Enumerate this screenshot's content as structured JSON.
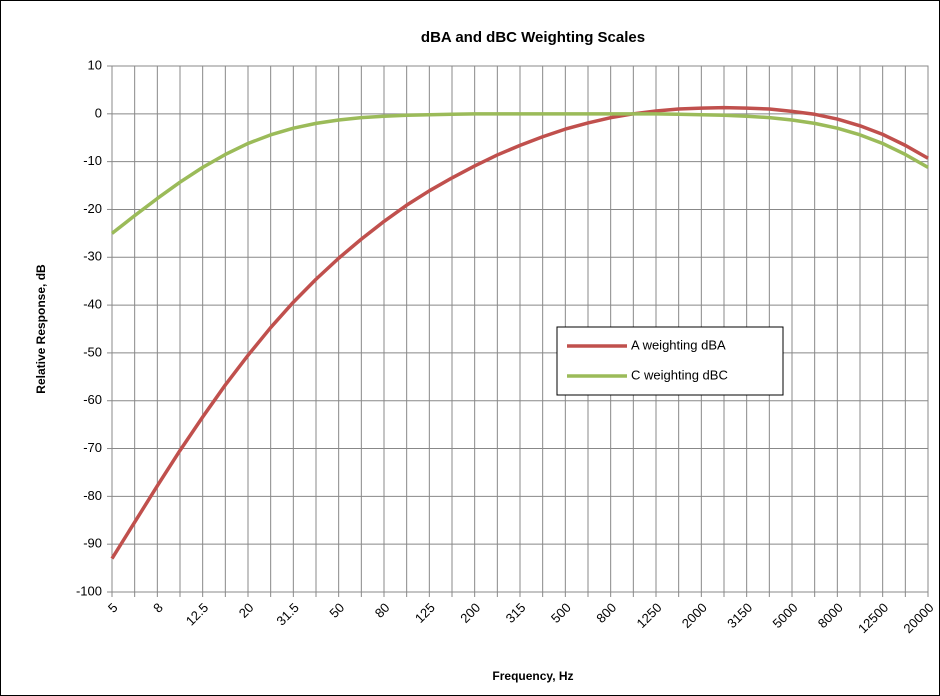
{
  "chart_data": {
    "type": "line",
    "title": "dBA and dBC Weighting Scales",
    "x_label": "Frequency, Hz",
    "y_label": "Relative Response, dB",
    "categories": [
      "5",
      null,
      "8",
      null,
      "12.5",
      null,
      "20",
      null,
      "31.5",
      null,
      "50",
      null,
      "80",
      null,
      "125",
      null,
      "200",
      null,
      "315",
      null,
      "500",
      null,
      "800",
      null,
      "1250",
      null,
      "2000",
      null,
      "3150",
      null,
      "5000",
      null,
      "8000",
      null,
      "12500",
      null,
      "20000"
    ],
    "series": [
      {
        "name": "A weighting dBA",
        "color": "#c0504d",
        "values": [
          -93,
          -85.4,
          -77.8,
          -70.4,
          -63.4,
          -56.7,
          -50.5,
          -44.7,
          -39.4,
          -34.6,
          -30.2,
          -26.2,
          -22.5,
          -19.1,
          -16.1,
          -13.4,
          -10.9,
          -8.6,
          -6.6,
          -4.8,
          -3.2,
          -1.9,
          -0.8,
          0,
          0.6,
          1.0,
          1.2,
          1.3,
          1.2,
          1.0,
          0.5,
          -0.1,
          -1.1,
          -2.5,
          -4.3,
          -6.6,
          -9.3
        ]
      },
      {
        "name": "C weighting dBC",
        "color": "#9bbb59",
        "values": [
          -25,
          -21.3,
          -17.7,
          -14.3,
          -11.2,
          -8.5,
          -6.2,
          -4.4,
          -3.0,
          -2.0,
          -1.3,
          -0.8,
          -0.5,
          -0.3,
          -0.2,
          -0.1,
          0,
          0,
          0,
          0,
          0,
          0,
          0,
          0,
          0,
          -0.1,
          -0.2,
          -0.3,
          -0.5,
          -0.8,
          -1.3,
          -2.0,
          -3.0,
          -4.4,
          -6.2,
          -8.5,
          -11.2
        ]
      }
    ],
    "ylim": [
      -100,
      10
    ],
    "yticks": [
      -100,
      -90,
      -80,
      -70,
      -60,
      -50,
      -40,
      -30,
      -20,
      -10,
      0,
      10
    ],
    "grid": true,
    "legend_position": "center right"
  }
}
